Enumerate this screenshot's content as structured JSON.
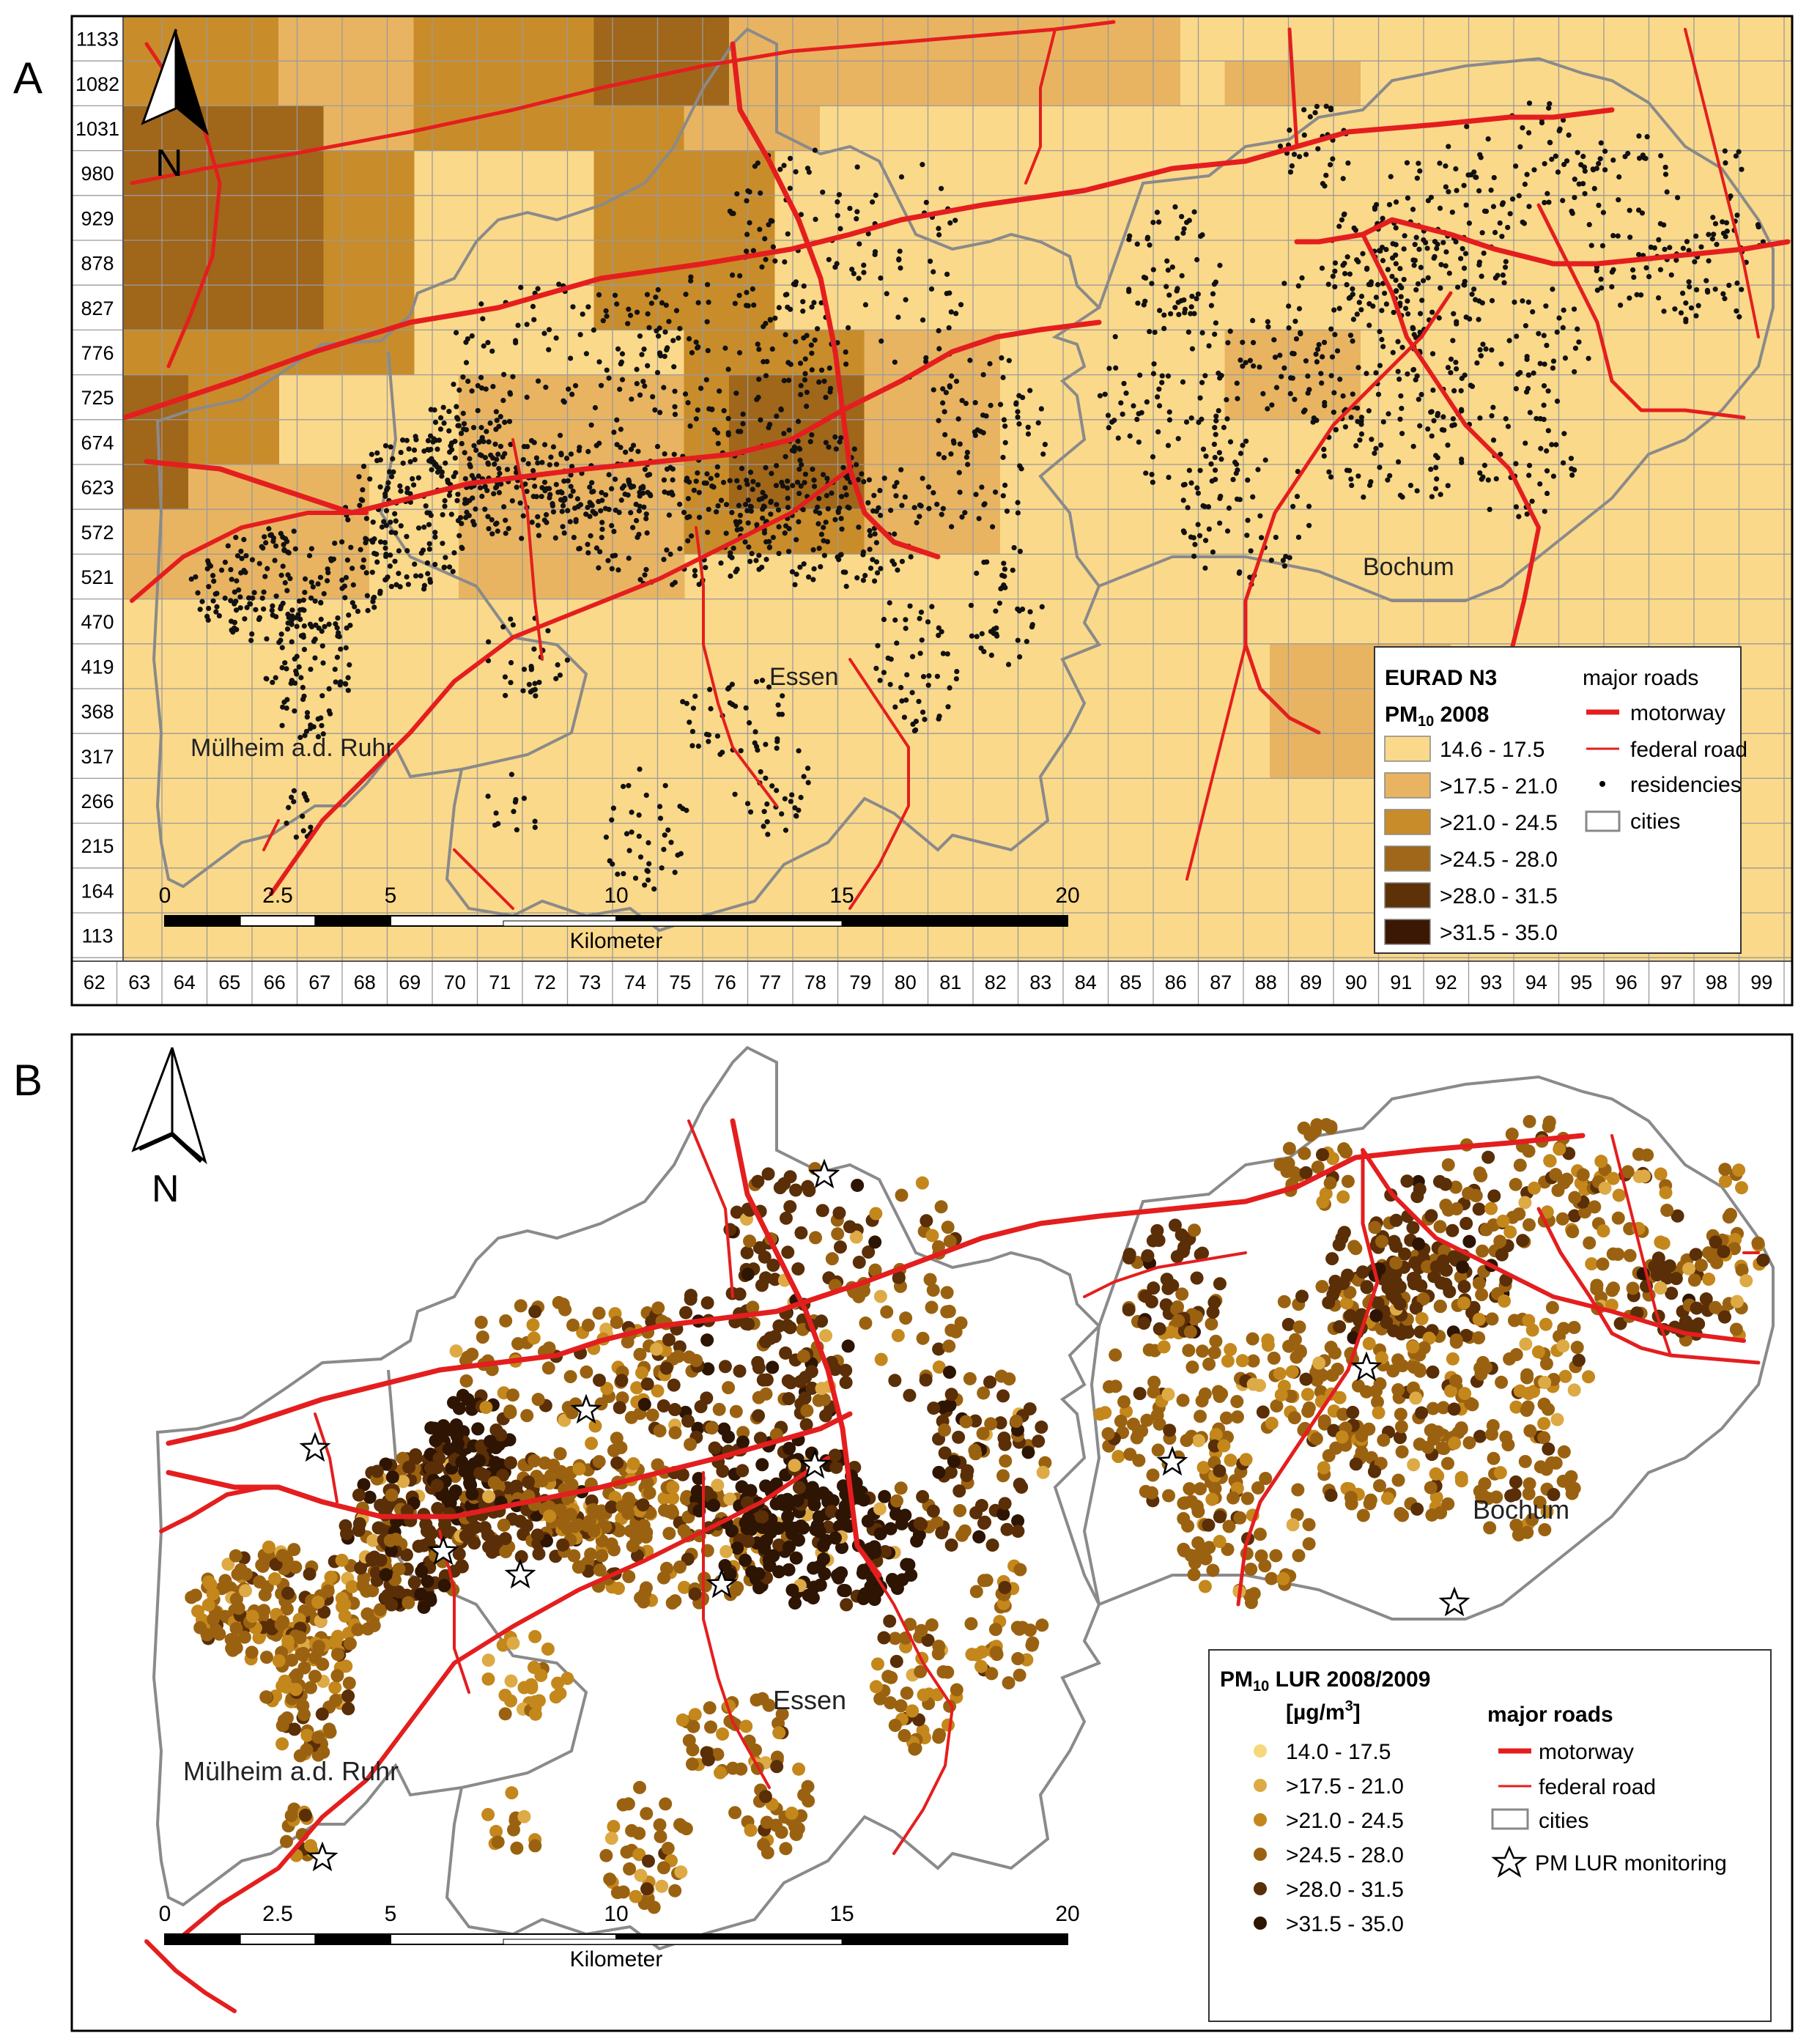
{
  "panels": {
    "a": {
      "letter": "A",
      "y_ticks": [
        "1133",
        "1082",
        "1031",
        "980",
        "929",
        "878",
        "827",
        "776",
        "725",
        "674",
        "623",
        "572",
        "521",
        "470",
        "419",
        "368",
        "317",
        "266",
        "215",
        "164",
        "113"
      ],
      "x_ticks": [
        "62",
        "63",
        "64",
        "65",
        "66",
        "67",
        "68",
        "69",
        "70",
        "71",
        "72",
        "73",
        "74",
        "75",
        "76",
        "77",
        "78",
        "79",
        "80",
        "81",
        "82",
        "83",
        "84",
        "85",
        "86",
        "87",
        "88",
        "89",
        "90",
        "91",
        "92",
        "93",
        "94",
        "95",
        "96",
        "97",
        "98",
        "99"
      ],
      "scale": {
        "ticks": [
          "0",
          "2.5",
          "5",
          "10",
          "15",
          "20"
        ],
        "unit": "Kilometer"
      },
      "north": "N",
      "cities": [
        "Mülheim a.d. Ruhr",
        "Essen",
        "Bochum"
      ],
      "legend": {
        "title_line1": "EURAD N3",
        "title_line2_main": "PM",
        "title_line2_sub": "10",
        "title_line2_rest": " 2008",
        "classes": [
          {
            "label": "14.6 - 17.5",
            "color": "#fbd98a"
          },
          {
            "label": ">17.5 - 21.0",
            "color": "#e8b462"
          },
          {
            "label": ">21.0 - 24.5",
            "color": "#c98c2a"
          },
          {
            "label": ">24.5 - 28.0",
            "color": "#a0661a"
          },
          {
            "label": ">28.0 - 31.5",
            "color": "#5e3208"
          },
          {
            "label": ">31.5 - 35.0",
            "color": "#3a1804"
          }
        ],
        "roads_title": "major roads",
        "motorway": "motorway",
        "federal_road": "federal road",
        "residencies": "residencies",
        "cities": "cities"
      }
    },
    "b": {
      "letter": "B",
      "scale": {
        "ticks": [
          "0",
          "2.5",
          "5",
          "10",
          "15",
          "20"
        ],
        "unit": "Kilometer"
      },
      "north": "N",
      "cities": [
        "Mülheim a.d. Ruhr",
        "Essen",
        "Bochum"
      ],
      "legend": {
        "title_main": "PM",
        "title_sub": "10",
        "title_rest": " LUR 2008/2009",
        "unit_pre": "[µg/m",
        "unit_sup": "3",
        "unit_post": "]",
        "classes": [
          {
            "label": "14.0 - 17.5",
            "color": "#f6d77a"
          },
          {
            "label": ">17.5 - 21.0",
            "color": "#ddaa45"
          },
          {
            "label": ">21.0 - 24.5",
            "color": "#c4871c"
          },
          {
            "label": ">24.5 - 28.0",
            "color": "#9a6210"
          },
          {
            "label": ">28.0 - 31.5",
            "color": "#5a2e06"
          },
          {
            "label": ">31.5 - 35.0",
            "color": "#2e1402"
          }
        ],
        "roads_title": "major roads",
        "motorway": "motorway",
        "federal_road": "federal road",
        "cities": "cities",
        "monitoring": "PM LUR monitoring"
      }
    }
  },
  "colors": {
    "road": "#e41e1e",
    "boundary": "#8a8a8a",
    "grid": "#9a9a9a"
  }
}
